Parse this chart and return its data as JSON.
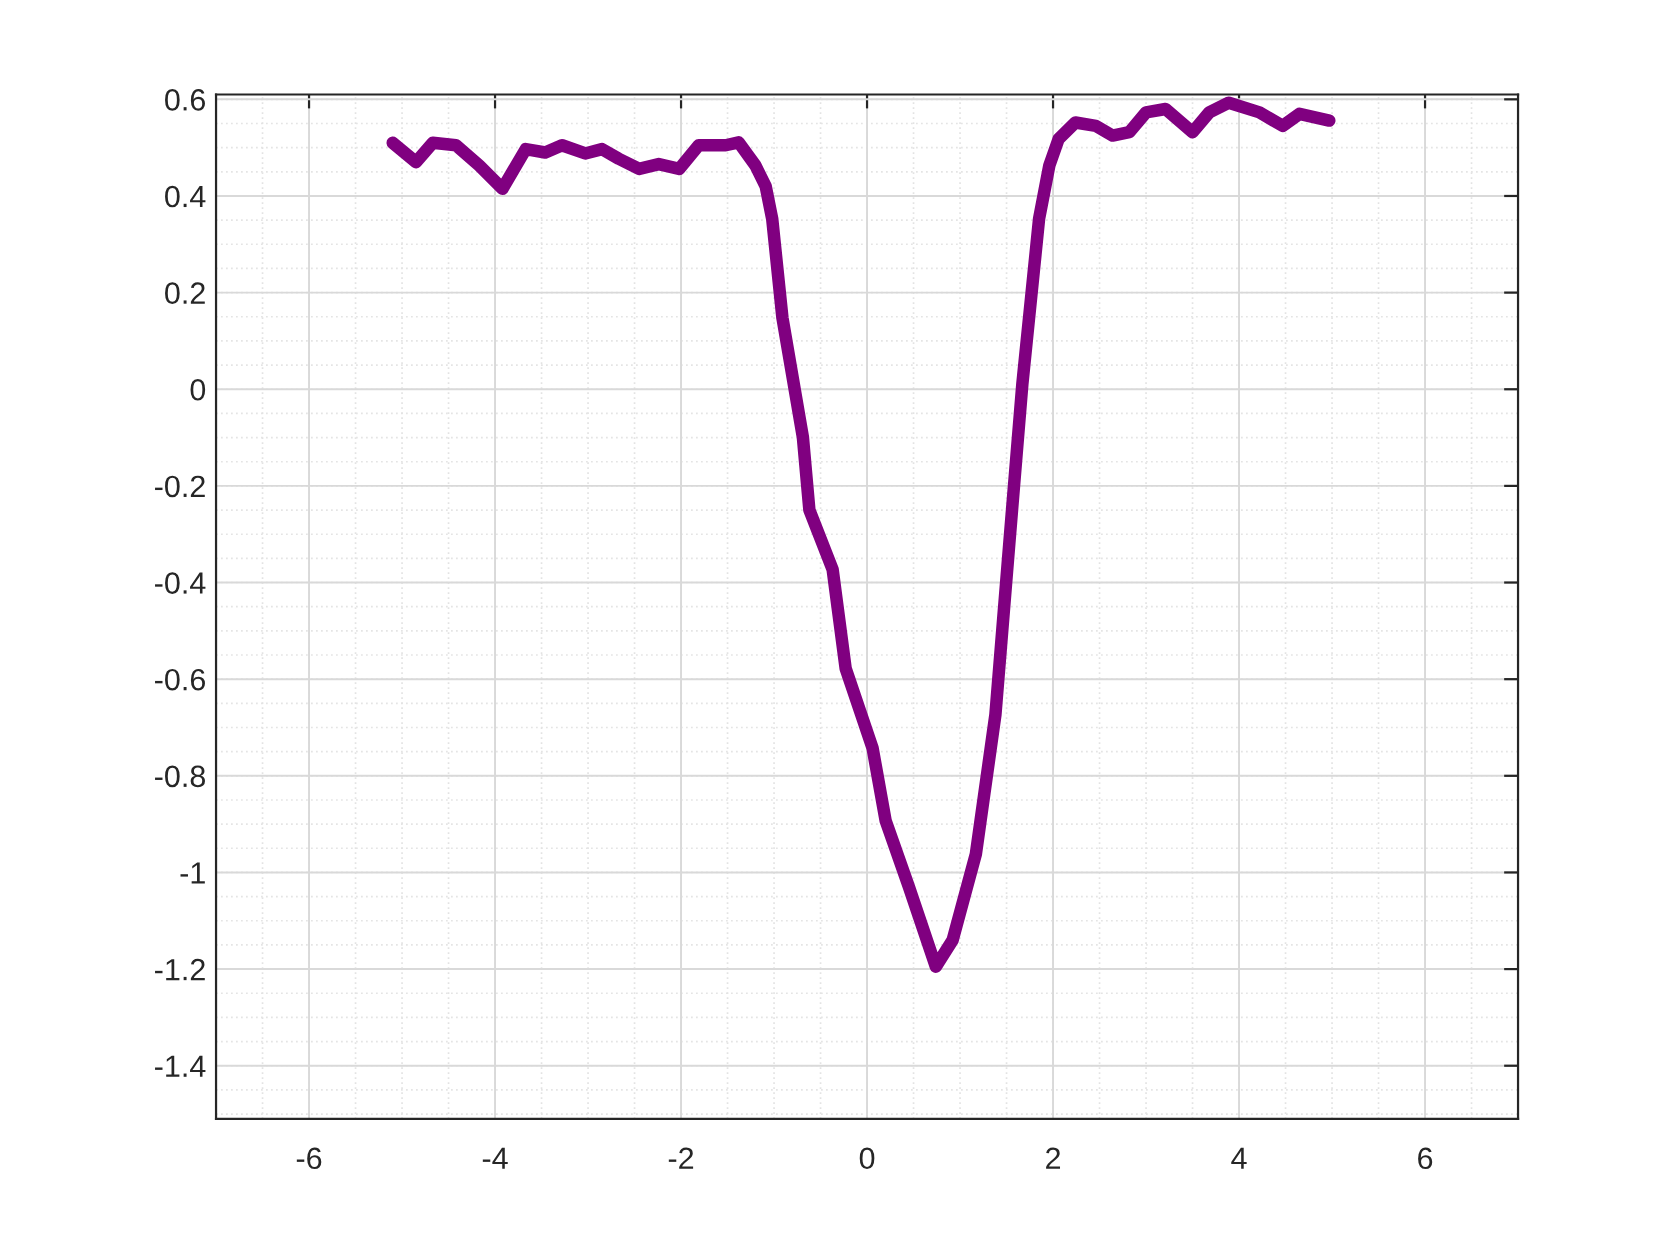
{
  "chart_data": {
    "type": "line",
    "x": [
      -5.1,
      -4.85,
      -4.67,
      -4.42,
      -4.17,
      -3.92,
      -3.67,
      -3.46,
      -3.28,
      -3.03,
      -2.85,
      -2.67,
      -2.45,
      -2.24,
      -2.02,
      -1.81,
      -1.52,
      -1.38,
      -1.2,
      -1.09,
      -1.02,
      -0.91,
      -0.69,
      -0.62,
      -0.37,
      -0.23,
      0.06,
      0.2,
      0.45,
      0.74,
      0.92,
      1.17,
      1.38,
      1.53,
      1.67,
      1.85,
      1.96,
      2.06,
      2.24,
      2.46,
      2.64,
      2.82,
      3.0,
      3.21,
      3.5,
      3.68,
      3.89,
      4.22,
      4.47,
      4.65,
      4.97
    ],
    "series": [
      {
        "color": "#800080",
        "values": [
          0.51,
          0.47,
          0.51,
          0.505,
          0.463,
          0.415,
          0.497,
          0.49,
          0.505,
          0.488,
          0.497,
          0.477,
          0.456,
          0.466,
          0.456,
          0.505,
          0.505,
          0.511,
          0.463,
          0.42,
          0.353,
          0.148,
          -0.099,
          -0.25,
          -0.373,
          -0.578,
          -0.743,
          -0.893,
          -1.03,
          -1.195,
          -1.14,
          -0.962,
          -0.674,
          -0.318,
          0.011,
          0.353,
          0.463,
          0.518,
          0.552,
          0.545,
          0.525,
          0.532,
          0.573,
          0.58,
          0.532,
          0.573,
          0.593,
          0.573,
          0.545,
          0.57,
          0.556
        ]
      }
    ],
    "xlim": [
      -7,
      7
    ],
    "xticks": [
      -6,
      -4,
      -2,
      0,
      2,
      4,
      6
    ],
    "ylim": [
      -1.51,
      0.61
    ],
    "yticks": [
      -1.4,
      -1.2,
      -1,
      -0.8,
      -0.6,
      -0.4,
      -0.2,
      0,
      0.2,
      0.4,
      0.6
    ],
    "grid": true,
    "marker": "none",
    "line_style": "solid"
  }
}
